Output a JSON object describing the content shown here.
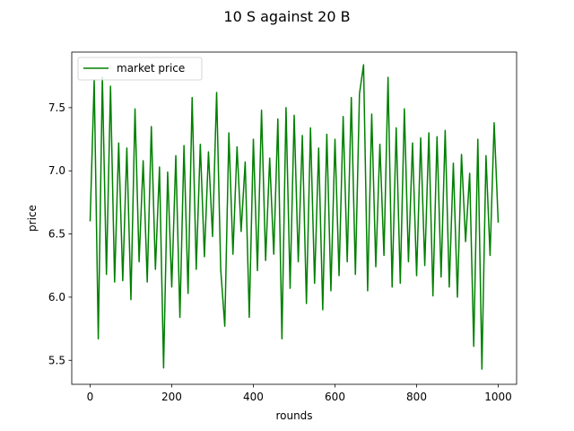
{
  "chart_data": {
    "type": "line",
    "title": "10 S against 20 B",
    "xlabel": "rounds",
    "ylabel": "price",
    "xlim": [
      -45,
      1045
    ],
    "ylim": [
      5.31,
      7.94
    ],
    "xticks": [
      0,
      200,
      400,
      600,
      800,
      1000
    ],
    "xtick_labels": [
      "0",
      "200",
      "400",
      "600",
      "800",
      "1000"
    ],
    "yticks": [
      5.5,
      6.0,
      6.5,
      7.0,
      7.5
    ],
    "ytick_labels": [
      "5.5",
      "6.0",
      "6.5",
      "7.0",
      "7.5"
    ],
    "grid": false,
    "legend": {
      "position": "top-left",
      "entries": [
        "market price"
      ]
    },
    "series": [
      {
        "name": "market price",
        "color": "#008000",
        "x": [
          0,
          10,
          20,
          30,
          40,
          50,
          60,
          70,
          80,
          90,
          100,
          110,
          120,
          130,
          140,
          150,
          160,
          170,
          180,
          190,
          200,
          210,
          220,
          230,
          240,
          250,
          260,
          270,
          280,
          290,
          300,
          310,
          320,
          330,
          340,
          350,
          360,
          370,
          380,
          390,
          400,
          410,
          420,
          430,
          440,
          450,
          460,
          470,
          480,
          490,
          500,
          510,
          520,
          530,
          540,
          550,
          560,
          570,
          580,
          590,
          600,
          610,
          620,
          630,
          640,
          650,
          660,
          670,
          680,
          690,
          700,
          710,
          720,
          730,
          740,
          750,
          760,
          770,
          780,
          790,
          800,
          810,
          820,
          830,
          840,
          850,
          860,
          870,
          880,
          890,
          900,
          910,
          920,
          930,
          940,
          950,
          960,
          970,
          980,
          990,
          1000
        ],
        "y": [
          6.6,
          7.72,
          5.67,
          7.74,
          6.18,
          7.67,
          6.12,
          7.22,
          6.13,
          7.18,
          5.98,
          7.49,
          6.28,
          7.08,
          6.12,
          7.35,
          6.22,
          7.03,
          5.44,
          6.99,
          6.08,
          7.12,
          5.84,
          7.2,
          6.03,
          7.58,
          6.22,
          7.21,
          6.32,
          7.15,
          6.48,
          7.62,
          6.22,
          5.77,
          7.3,
          6.34,
          7.19,
          6.52,
          7.07,
          5.84,
          7.25,
          6.21,
          7.48,
          6.29,
          7.1,
          6.34,
          7.41,
          5.67,
          7.5,
          6.07,
          7.44,
          6.28,
          7.28,
          5.95,
          7.34,
          6.11,
          7.18,
          5.9,
          7.29,
          6.05,
          7.25,
          6.17,
          7.43,
          6.28,
          7.58,
          6.18,
          7.61,
          7.84,
          6.05,
          7.45,
          6.24,
          7.21,
          6.33,
          7.74,
          6.08,
          7.34,
          6.11,
          7.49,
          6.28,
          7.22,
          6.17,
          7.26,
          6.25,
          7.3,
          6.01,
          7.27,
          6.16,
          7.32,
          6.08,
          7.06,
          6.0,
          7.13,
          6.44,
          6.98,
          5.61,
          7.25,
          5.43,
          7.12,
          6.33,
          7.38,
          6.59
        ]
      }
    ]
  }
}
